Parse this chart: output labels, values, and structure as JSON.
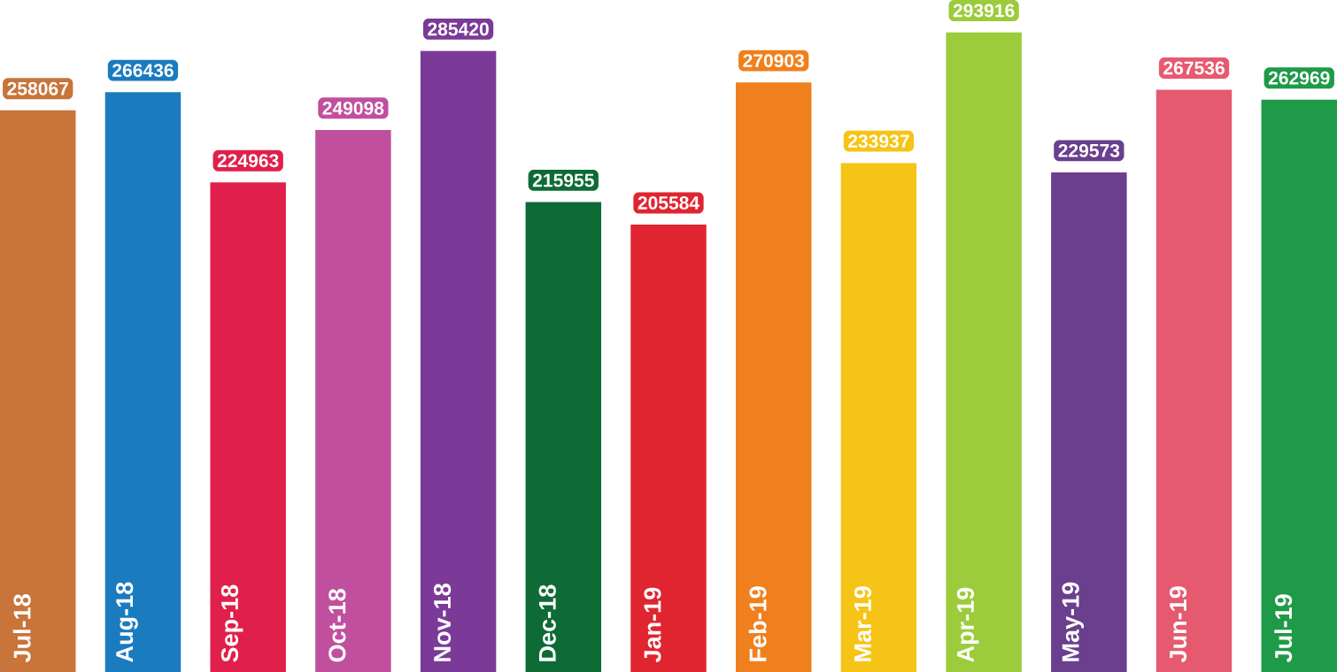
{
  "chart_data": {
    "type": "bar",
    "categories": [
      "Jul-18",
      "Aug-18",
      "Sep-18",
      "Oct-18",
      "Nov-18",
      "Dec-18",
      "Jan-19",
      "Feb-19",
      "Mar-19",
      "Apr-19",
      "May-19",
      "Jun-19",
      "Jul-19"
    ],
    "values": [
      258067,
      266436,
      224963,
      249098,
      285420,
      215955,
      205584,
      270903,
      233937,
      293916,
      229573,
      267536,
      262969
    ],
    "colors": [
      "#c8743a",
      "#1a7bbf",
      "#e0204a",
      "#c0509e",
      "#7b3a97",
      "#0e6b35",
      "#e02530",
      "#f0801e",
      "#f5c416",
      "#9ccb3b",
      "#6a3f8e",
      "#e65a70",
      "#1f9a48"
    ],
    "data_labels": true
  }
}
